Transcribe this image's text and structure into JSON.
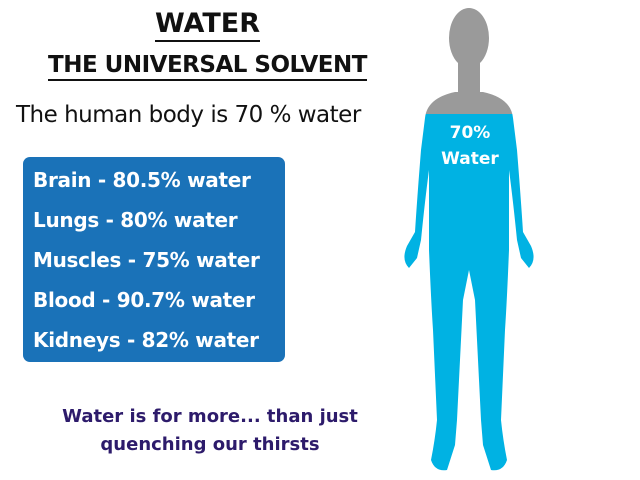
{
  "title": "WATER",
  "subtitle": "THE UNIVERSAL SOLVENT",
  "statement": "The human body is 70 % water",
  "facts": [
    {
      "label": "Brain - 80.5% water"
    },
    {
      "label": "Lungs - 80% water"
    },
    {
      "label": "Muscles - 75% water"
    },
    {
      "label": "Blood - 90.7% water"
    },
    {
      "label": "Kidneys - 82% water"
    }
  ],
  "footer": {
    "line1": "Water is for more... than just",
    "line2": "quenching our thirsts"
  },
  "figure": {
    "percent_label": "70%",
    "water_label": "Water",
    "water_fraction": 0.7
  },
  "colors": {
    "box": "#1a72b8",
    "water": "#00b2e3",
    "body_dry": "#9a9a9a",
    "footer_text": "#2d1b6b"
  }
}
